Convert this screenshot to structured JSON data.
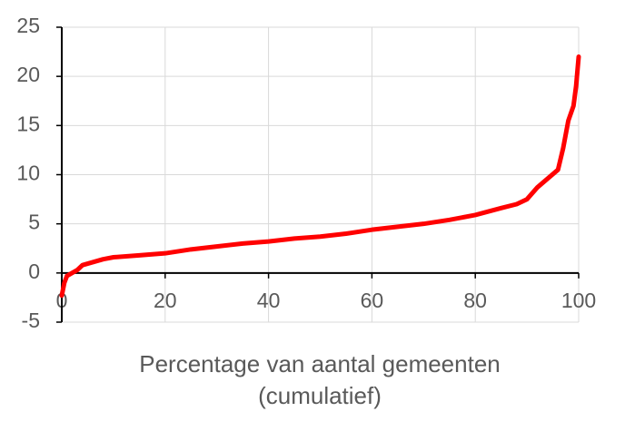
{
  "chart_data": {
    "type": "line",
    "x_label": [
      "Percentage van aantal gemeenten",
      "(cumulatief)"
    ],
    "xlim": [
      0,
      100
    ],
    "xticks": [
      0,
      20,
      40,
      60,
      80,
      100
    ],
    "ylim": [
      -5,
      25
    ],
    "yticks": [
      -5,
      0,
      5,
      10,
      15,
      20,
      25
    ],
    "grid": true,
    "series": [
      {
        "color": "#ff0000",
        "x": [
          0,
          0.5,
          1,
          2,
          3,
          4,
          6,
          8,
          10,
          15,
          20,
          25,
          30,
          35,
          40,
          45,
          50,
          55,
          60,
          65,
          70,
          75,
          80,
          85,
          88,
          90,
          92,
          94,
          96,
          97,
          98,
          99,
          99.5,
          100
        ],
        "values": [
          -2.3,
          -1,
          -0.3,
          0,
          0.3,
          0.8,
          1.1,
          1.4,
          1.6,
          1.8,
          2.0,
          2.4,
          2.7,
          3.0,
          3.2,
          3.5,
          3.7,
          4.0,
          4.4,
          4.7,
          5.0,
          5.4,
          5.9,
          6.6,
          7.0,
          7.5,
          8.7,
          9.6,
          10.5,
          12.7,
          15.5,
          17,
          19,
          22
        ]
      }
    ]
  }
}
